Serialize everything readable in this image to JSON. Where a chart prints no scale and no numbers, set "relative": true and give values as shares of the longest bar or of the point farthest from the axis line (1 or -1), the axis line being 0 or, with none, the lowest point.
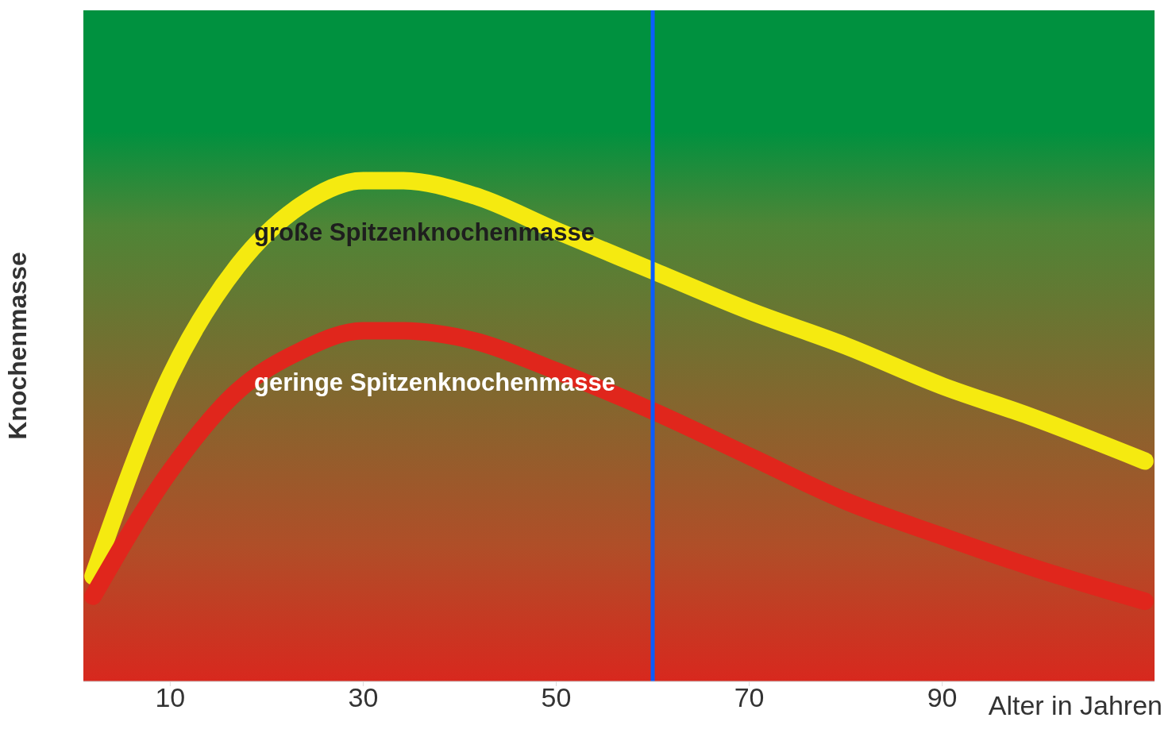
{
  "chart_data": {
    "type": "line",
    "xlabel": "Alter in Jahren",
    "ylabel": "Knochenmasse",
    "relative": true,
    "xlim": [
      1,
      112
    ],
    "xticks": [
      10,
      30,
      50,
      70,
      90
    ],
    "x": [
      2,
      10,
      17,
      23.5,
      30,
      34,
      41.5,
      50,
      60,
      70,
      80,
      90,
      99,
      111
    ],
    "series": [
      {
        "name": "große Spitzenknochenmasse",
        "color": "#f5ea10",
        "values": [
          0.21,
          0.61,
          0.83,
          0.95,
          1.0,
          1.0,
          0.97,
          0.9,
          0.82,
          0.74,
          0.67,
          0.59,
          0.53,
          0.44
        ]
      },
      {
        "name": "geringe Spitzenknochenmasse",
        "color": "#e0261c",
        "values": [
          0.17,
          0.42,
          0.58,
          0.66,
          0.7,
          0.7,
          0.68,
          0.62,
          0.54,
          0.45,
          0.36,
          0.29,
          0.23,
          0.16
        ]
      }
    ],
    "ref_lines": [
      {
        "axis": "x",
        "value": 60,
        "color": "#0a5cff"
      }
    ]
  }
}
